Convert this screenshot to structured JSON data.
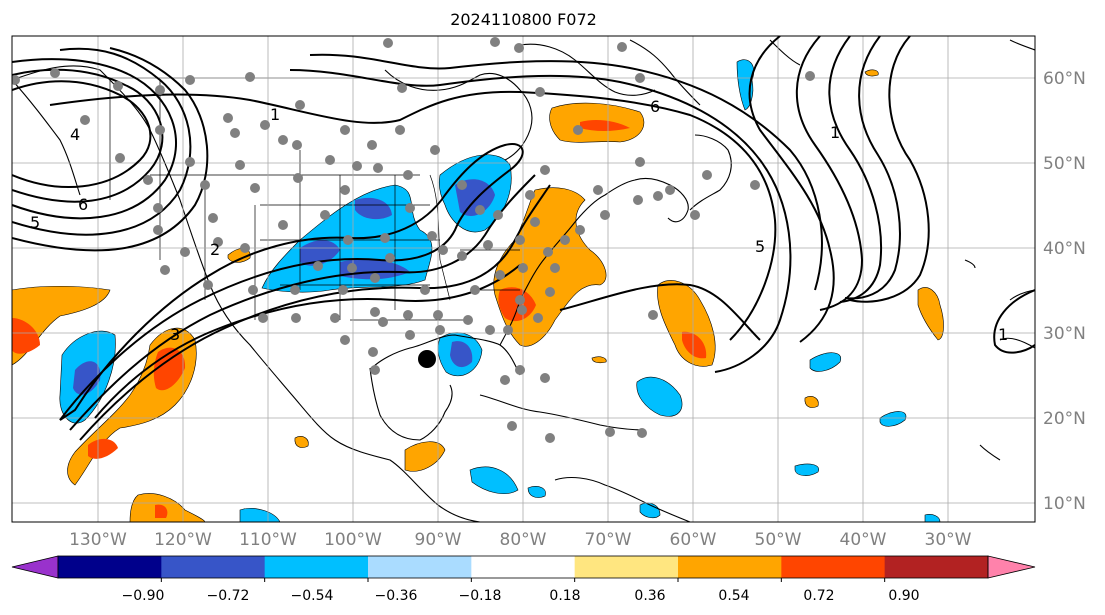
{
  "title": "2024110800 F072",
  "lon_labels": [
    "130°W",
    "120°W",
    "110°W",
    "100°W",
    "90°W",
    "80°W",
    "70°W",
    "60°W",
    "50°W",
    "40°W",
    "30°W"
  ],
  "lat_labels": [
    "60°N",
    "50°N",
    "40°N",
    "30°N",
    "20°N",
    "10°N"
  ],
  "colorbar": {
    "tick_labels": [
      "−0.90",
      "−0.72",
      "−0.54",
      "−0.36",
      "−0.18",
      "0.18",
      "0.36",
      "0.54",
      "0.72",
      "0.90"
    ],
    "colors": [
      "#9932cc",
      "#00008b",
      "#3755c8",
      "#00bfff",
      "#aadcff",
      "#ffffff",
      "#ffe680",
      "#ffa500",
      "#ff4500",
      "#b22222",
      "#ff82ab"
    ]
  },
  "contour_labels": [
    "6",
    "5",
    "4",
    "3",
    "2",
    "1",
    "1",
    "1",
    "5",
    "6"
  ],
  "colors": {
    "land_line": "#000000",
    "grid": "#aaaaaa",
    "station": "#808080",
    "center_marker": "#000000",
    "pos_fill": "#ffa500",
    "pos_strong": "#ff4500",
    "neg_fill": "#00bfff",
    "neg_strong": "#3755c8"
  }
}
